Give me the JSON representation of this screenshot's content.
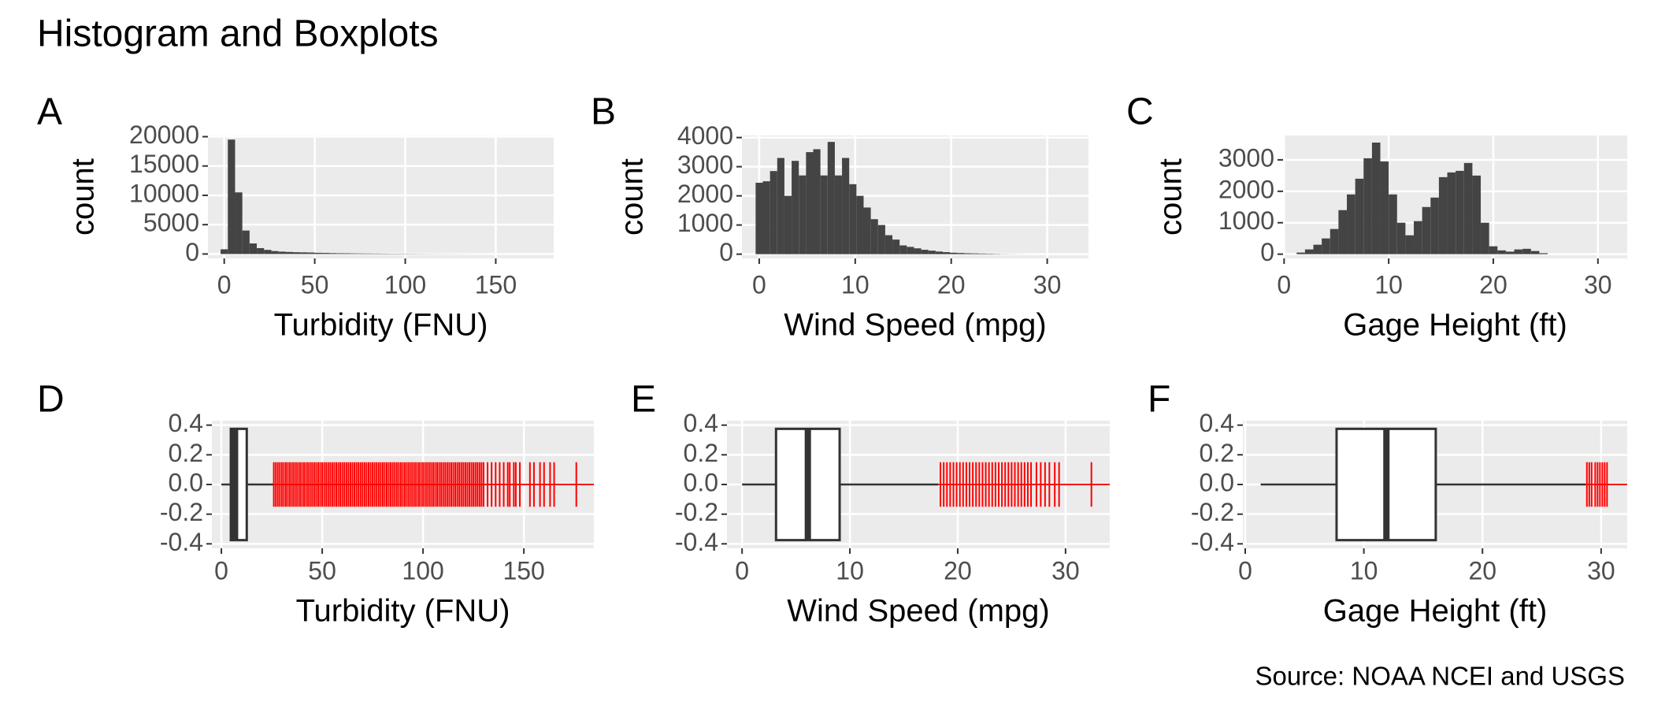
{
  "title": "Histogram and Boxplots",
  "caption": "Source: NOAA NCEI and USGS",
  "chart_data": [
    {
      "type": "histogram",
      "tag": "A",
      "x_label": "Turbidity (FNU)",
      "y_label": "count",
      "color": "#444444",
      "grid": true,
      "bins": [
        -2,
        2,
        6,
        10,
        14,
        18,
        22,
        26,
        30,
        34,
        38,
        42,
        46,
        50,
        54,
        58,
        62,
        66,
        70,
        74,
        78,
        82,
        86,
        90,
        94,
        98,
        102,
        106,
        110,
        114,
        118,
        122,
        126,
        130,
        134,
        138,
        142,
        146,
        150,
        154,
        158,
        162,
        166,
        170,
        174,
        178,
        182
      ],
      "counts": [
        800,
        19500,
        10500,
        4000,
        1800,
        1000,
        700,
        500,
        400,
        350,
        300,
        280,
        250,
        200,
        180,
        150,
        130,
        120,
        100,
        90,
        80,
        70,
        60,
        50,
        45,
        40,
        35,
        30,
        25,
        20,
        18,
        15,
        12,
        10,
        8,
        6,
        5,
        4,
        3,
        3,
        2,
        2,
        1,
        1,
        1,
        1
      ],
      "xlim": [
        -9,
        182
      ],
      "xticks": [
        0,
        50,
        100,
        150
      ],
      "ylim": [
        -750,
        20200
      ],
      "yticks": [
        0,
        5000,
        10000,
        15000,
        20000
      ]
    },
    {
      "type": "histogram",
      "tag": "B",
      "x_label": "Wind Speed (mpg)",
      "y_label": "count",
      "color": "#444444",
      "grid": true,
      "bins": [
        -0.375,
        0.375,
        1.125,
        1.875,
        2.625,
        3.375,
        4.125,
        4.875,
        5.625,
        6.375,
        7.125,
        7.875,
        8.625,
        9.375,
        10.125,
        10.875,
        11.625,
        12.375,
        13.125,
        13.875,
        14.625,
        15.375,
        16.125,
        16.875,
        17.625,
        18.375,
        19.125,
        19.875,
        20.625,
        21.375,
        22.125,
        22.875,
        23.625,
        24.375,
        25.125,
        25.875,
        26.625,
        27.375,
        28.125
      ],
      "counts": [
        2450,
        2500,
        2850,
        3300,
        2000,
        3200,
        2700,
        3500,
        3600,
        2700,
        3850,
        2700,
        3300,
        2400,
        2000,
        1600,
        1200,
        1000,
        650,
        500,
        300,
        250,
        200,
        150,
        120,
        90,
        70,
        50,
        40,
        30,
        25,
        20,
        15,
        10,
        5,
        3,
        2,
        1
      ],
      "xlim": [
        -1.8,
        34.3
      ],
      "xticks": [
        0,
        10,
        20,
        30
      ],
      "ylim": [
        -145,
        4070
      ],
      "yticks": [
        0,
        1000,
        2000,
        3000,
        4000
      ]
    },
    {
      "type": "histogram",
      "tag": "C",
      "x_label": "Gage Height (ft)",
      "y_label": "count",
      "color": "#444444",
      "grid": true,
      "bins": [
        1.2,
        2.0,
        2.8,
        3.6,
        4.4,
        5.2,
        6.0,
        6.8,
        7.6,
        8.4,
        9.2,
        10.0,
        10.8,
        11.6,
        12.4,
        13.2,
        14.0,
        14.8,
        15.6,
        16.4,
        17.2,
        18.0,
        18.8,
        19.6,
        20.4,
        21.2,
        22.0,
        22.8,
        23.6,
        24.4,
        25.2
      ],
      "counts": [
        50,
        150,
        300,
        500,
        800,
        1400,
        1900,
        2400,
        3050,
        3550,
        2950,
        1900,
        1000,
        600,
        1050,
        1500,
        1800,
        2450,
        2600,
        2650,
        2900,
        2500,
        1000,
        250,
        120,
        80,
        150,
        170,
        100,
        30
      ],
      "xlim": [
        -0.1,
        32.8
      ],
      "xticks": [
        0,
        10,
        20,
        30
      ],
      "ylim": [
        -135,
        3775
      ],
      "yticks": [
        0,
        1000,
        2000,
        3000
      ]
    },
    {
      "type": "boxplot",
      "tag": "D",
      "x_label": "Turbidity (FNU)",
      "grid": true,
      "outlier_color": "#ff0000",
      "whisker_low": 0,
      "q1": 4.7,
      "median": 6.8,
      "q3": 12.6,
      "whisker_high": 25.8,
      "outliers": [
        26,
        27,
        28,
        29,
        30,
        31,
        32,
        33,
        34,
        35,
        36,
        37,
        38,
        39,
        40,
        41,
        42,
        43,
        44,
        45,
        46,
        47,
        48,
        49,
        50,
        51,
        52,
        53,
        54,
        55,
        56,
        57,
        58,
        59,
        60,
        61,
        62,
        63,
        64,
        65,
        66,
        67,
        68,
        69,
        70,
        71,
        72,
        73,
        74,
        75,
        76,
        77,
        78,
        79,
        80,
        81,
        82,
        83,
        84,
        85,
        86,
        87,
        88,
        89,
        90,
        91,
        92,
        93,
        94,
        95,
        96,
        97,
        98,
        99,
        100,
        101,
        102,
        103,
        104,
        105,
        106,
        107,
        108,
        109,
        110,
        111,
        112,
        113,
        114,
        115,
        116,
        117,
        118,
        119,
        120,
        121,
        122,
        123,
        124,
        125,
        126,
        127,
        128,
        129,
        130,
        132,
        134,
        136,
        138,
        140,
        142,
        143,
        145,
        146,
        148,
        153,
        155,
        158,
        160,
        163,
        165,
        176
      ],
      "xlim": [
        -4.7,
        184.7
      ],
      "xticks": [
        0,
        50,
        100,
        150
      ],
      "ylim": [
        -0.43,
        0.43
      ],
      "yticks": [
        -0.4,
        -0.2,
        {
          "value": 0,
          "label": "0.0"
        },
        0.2,
        0.4
      ]
    },
    {
      "type": "boxplot",
      "tag": "E",
      "x_label": "Wind Speed (mpg)",
      "grid": true,
      "outlier_color": "#ff0000",
      "whisker_low": 0,
      "q1": 3.15,
      "median": 6.1,
      "q3": 9.05,
      "whisker_high": 18.2,
      "outliers": [
        18.4,
        18.7,
        19,
        19.3,
        19.6,
        19.9,
        20.2,
        20.5,
        20.8,
        21.1,
        21.4,
        21.7,
        22,
        22.3,
        22.6,
        22.9,
        23.2,
        23.5,
        23.8,
        24.1,
        24.4,
        24.7,
        25,
        25.3,
        25.6,
        25.9,
        26.2,
        26.5,
        26.8,
        27.3,
        27.7,
        28.1,
        28.5,
        29,
        29.4,
        32.4
      ],
      "xlim": [
        -1.4,
        34.1
      ],
      "xticks": [
        0,
        10,
        20,
        30
      ],
      "ylim": [
        -0.43,
        0.43
      ],
      "yticks": [
        -0.4,
        -0.2,
        {
          "value": 0,
          "label": "0.0"
        },
        0.2,
        0.4
      ]
    },
    {
      "type": "boxplot",
      "tag": "F",
      "x_label": "Gage Height (ft)",
      "grid": true,
      "outlier_color": "#ff0000",
      "whisker_low": 1.3,
      "q1": 7.7,
      "median": 11.9,
      "q3": 16.06,
      "whisker_high": 28.7,
      "outliers": [
        28.8,
        29,
        29.2,
        29.5,
        29.7,
        29.9,
        30.1,
        30.3,
        30.5
      ],
      "xlim": [
        -0.2,
        32.2
      ],
      "xticks": [
        0,
        10,
        20,
        30
      ],
      "ylim": [
        -0.43,
        0.43
      ],
      "yticks": [
        -0.4,
        -0.2,
        {
          "value": 0,
          "label": "0.0"
        },
        0.2,
        0.4
      ]
    }
  ]
}
